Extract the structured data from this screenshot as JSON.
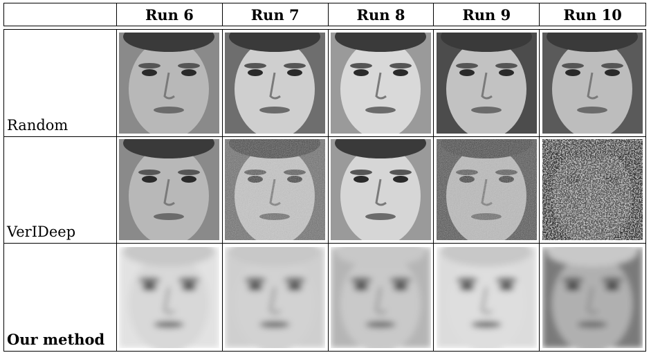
{
  "table": {
    "corner": "",
    "columns": [
      "Run 6",
      "Run 7",
      "Run 8",
      "Run 9",
      "Run 10"
    ],
    "rows": [
      {
        "label": "Random",
        "bold": false,
        "images": [
          {
            "icon": "face-photo-sharp",
            "tone": "#8a8a8a",
            "skin": "#b8b8b8",
            "blur": 0,
            "noise": 0
          },
          {
            "icon": "face-photo-sharp",
            "tone": "#6e6e6e",
            "skin": "#cfcfcf",
            "blur": 0,
            "noise": 0
          },
          {
            "icon": "face-photo-sharp",
            "tone": "#9a9a9a",
            "skin": "#d9d9d9",
            "blur": 0,
            "noise": 0
          },
          {
            "icon": "face-photo-sharp",
            "tone": "#4c4c4c",
            "skin": "#c2c2c2",
            "blur": 0,
            "noise": 0
          },
          {
            "icon": "face-photo-sharp",
            "tone": "#5a5a5a",
            "skin": "#bdbdbd",
            "blur": 0,
            "noise": 0
          }
        ]
      },
      {
        "label": "VerIDeep",
        "bold": false,
        "images": [
          {
            "icon": "face-photo-sharp",
            "tone": "#8a8a8a",
            "skin": "#b8b8b8",
            "blur": 0,
            "noise": 0
          },
          {
            "icon": "face-photo-noisy",
            "tone": "#6e6e6e",
            "skin": "#c6c6c6",
            "blur": 0,
            "noise": 1
          },
          {
            "icon": "face-photo-sharp",
            "tone": "#9a9a9a",
            "skin": "#d6d6d6",
            "blur": 0,
            "noise": 0
          },
          {
            "icon": "face-photo-noisy",
            "tone": "#4c4c4c",
            "skin": "#bcbcbc",
            "blur": 0,
            "noise": 1
          },
          {
            "icon": "face-photo-heavy-noise",
            "tone": "#1e1e1e",
            "skin": "#5a5a5a",
            "blur": 0,
            "noise": 2
          }
        ]
      },
      {
        "label": "Our method",
        "bold": true,
        "images": [
          {
            "icon": "face-reconstruction-blurry",
            "tone": "#e2e2e2",
            "skin": "#d8d8d8",
            "blur": 1,
            "noise": 0
          },
          {
            "icon": "face-reconstruction-blurry",
            "tone": "#cfcfcf",
            "skin": "#d2d2d2",
            "blur": 1,
            "noise": 0
          },
          {
            "icon": "face-reconstruction-blurry",
            "tone": "#b5b5b5",
            "skin": "#c9c9c9",
            "blur": 1,
            "noise": 0
          },
          {
            "icon": "face-reconstruction-blurry",
            "tone": "#dcdcdc",
            "skin": "#dedede",
            "blur": 1,
            "noise": 0
          },
          {
            "icon": "face-reconstruction-blurry",
            "tone": "#7a7a7a",
            "skin": "#b0b0b0",
            "blur": 1,
            "noise": 0
          }
        ]
      }
    ]
  }
}
